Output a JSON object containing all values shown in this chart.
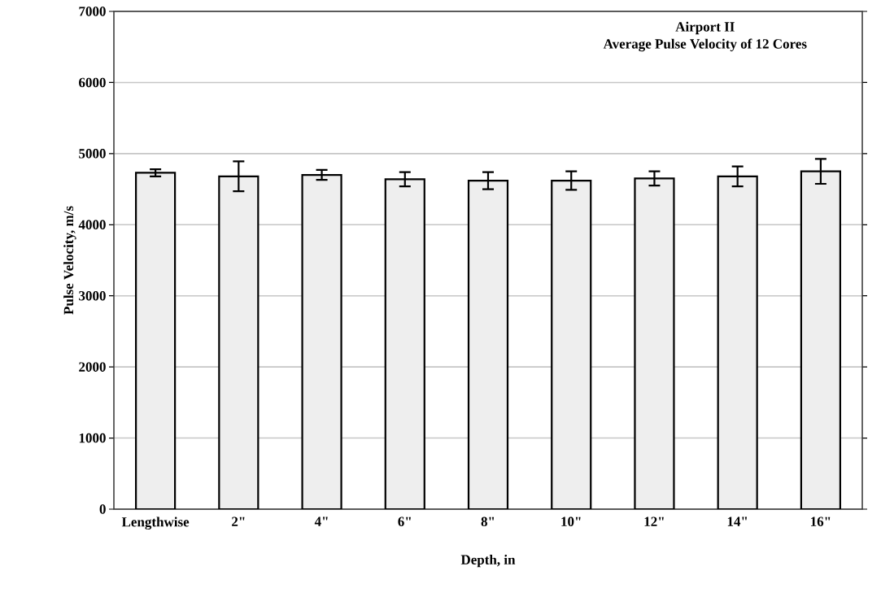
{
  "chart_data": {
    "type": "bar",
    "title": "Airport II",
    "subtitle": "Average Pulse Velocity of  12 Cores",
    "xlabel": "Depth, in",
    "ylabel": "Pulse Velocity, m/s",
    "categories": [
      "Lengthwise",
      "2\"",
      "4\"",
      "6\"",
      "8\"",
      "10\"",
      "12\"",
      "14\"",
      "16\""
    ],
    "values": [
      4730,
      4680,
      4700,
      4640,
      4620,
      4620,
      4650,
      4680,
      4750
    ],
    "errors": [
      50,
      210,
      70,
      100,
      120,
      130,
      100,
      140,
      175
    ],
    "color": "#eeeeee",
    "ylim": [
      0,
      7000
    ],
    "yticks": [
      0,
      1000,
      2000,
      3000,
      4000,
      5000,
      6000,
      7000
    ],
    "grid": "y"
  }
}
